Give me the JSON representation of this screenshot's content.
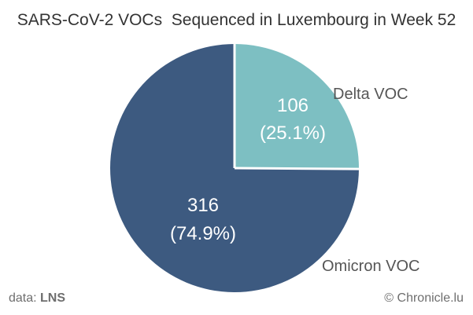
{
  "chart_data": {
    "type": "pie",
    "title": "SARS-CoV-2 VOCs  Sequenced in Luxembourg in Week 52",
    "slices": [
      {
        "label": "Delta VOC",
        "value": 106,
        "percent_label": "(25.1%)",
        "color": "#7dbfc2"
      },
      {
        "label": "Omicron VOC",
        "value": 316,
        "percent_label": "(74.9%)",
        "color": "#3d5a80"
      }
    ],
    "start_angle": "12 o'clock",
    "direction": "clockwise",
    "slice_separator_color": "#ffffff"
  },
  "footer": {
    "source_prefix": "data: ",
    "source_name": "LNS",
    "credit": "© Chronicle.lu"
  }
}
